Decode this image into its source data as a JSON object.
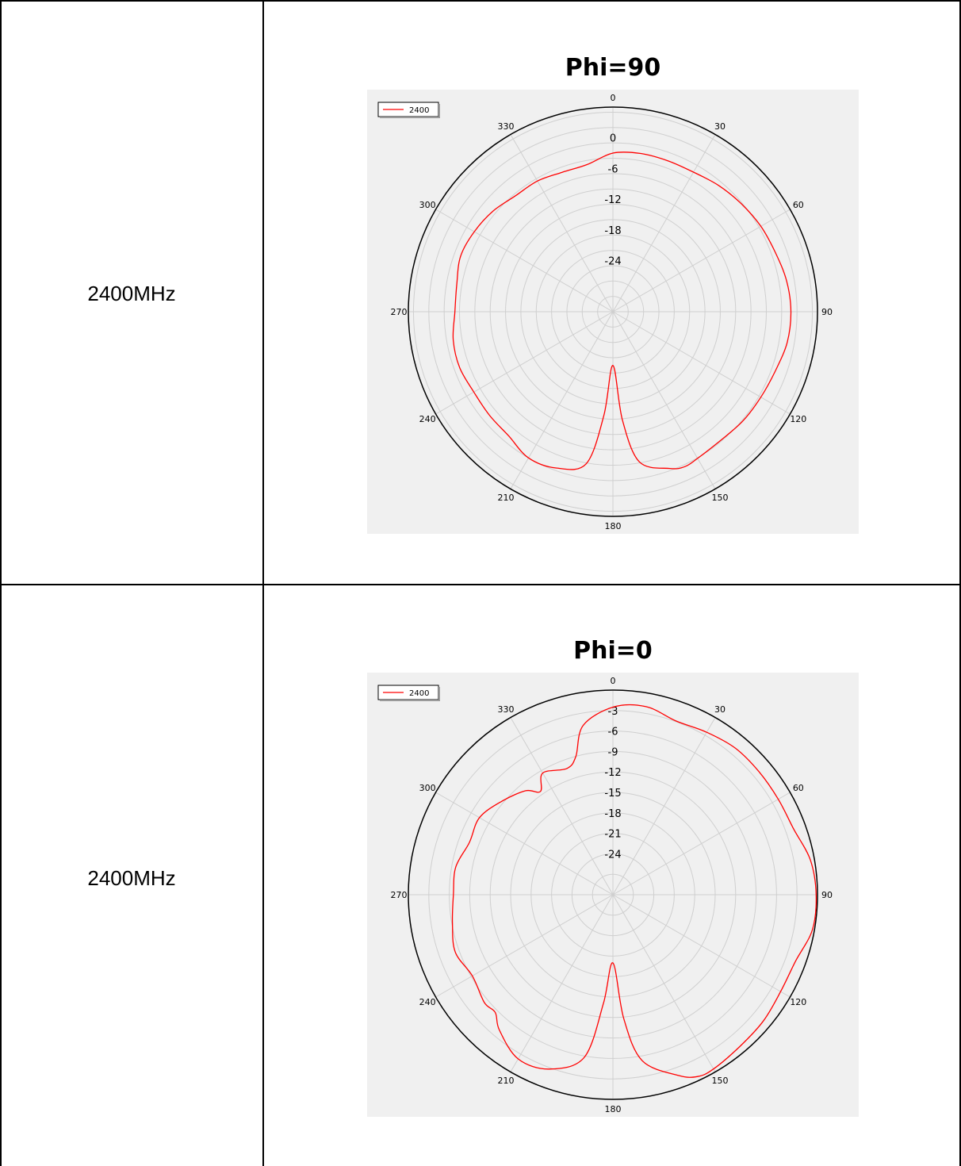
{
  "rows": [
    {
      "label": "2400MHz"
    },
    {
      "label": "2400MHz"
    }
  ],
  "colors": {
    "trace": "#ff0000",
    "plot_bg": "#f0f0f0",
    "grid": "#cfcfcf",
    "outer_ring": "#000000"
  },
  "chart_data": [
    {
      "type": "polar-line",
      "title": "Phi=90",
      "angle_unit": "degrees",
      "angle_zero": "top",
      "angle_direction": "clockwise",
      "angle_ticks": [
        0,
        30,
        60,
        90,
        120,
        150,
        180,
        210,
        240,
        270,
        300,
        330
      ],
      "radial_range": [
        -34,
        6
      ],
      "radial_tick_labels": [
        "0",
        "-6",
        "-12",
        "-18",
        "-24"
      ],
      "radial_ticks": [
        0,
        -6,
        -12,
        -18,
        -24
      ],
      "radial_grid_step": 3,
      "grid": true,
      "legend": {
        "position": "top-left",
        "entries": [
          "2400"
        ]
      },
      "series": [
        {
          "name": "2400",
          "angles": [
            0,
            10,
            20,
            30,
            40,
            50,
            60,
            70,
            80,
            90,
            100,
            110,
            120,
            130,
            140,
            150,
            155,
            160,
            170,
            175,
            180,
            185,
            190,
            200,
            210,
            220,
            230,
            240,
            250,
            260,
            270,
            280,
            290,
            300,
            310,
            320,
            330,
            340,
            350,
            360
          ],
          "values": [
            -3.0,
            -2.6,
            -2.6,
            -2.5,
            -1.8,
            -1.2,
            -0.6,
            -0.2,
            0.5,
            0.8,
            0.6,
            -0.2,
            -0.6,
            -0.8,
            -1.2,
            -0.9,
            -0.6,
            -1.4,
            -4.2,
            -12.8,
            -23.5,
            -13.6,
            -3.8,
            -1.5,
            -1.0,
            -2.3,
            -2.5,
            -2.6,
            -2.1,
            -2.3,
            -3.1,
            -3.0,
            -2.3,
            -2.7,
            -3.4,
            -4.4,
            -4.5,
            -5.0,
            -4.8,
            -3.0
          ]
        }
      ]
    },
    {
      "type": "polar-line",
      "title": "Phi=0",
      "angle_unit": "degrees",
      "angle_zero": "top",
      "angle_direction": "clockwise",
      "angle_ticks": [
        0,
        30,
        60,
        90,
        120,
        150,
        180,
        210,
        240,
        270,
        300,
        330
      ],
      "radial_range": [
        -30,
        0
      ],
      "radial_tick_labels": [
        "-3",
        "-6",
        "-9",
        "-12",
        "-15",
        "-18",
        "-21",
        "-24"
      ],
      "radial_ticks": [
        -3,
        -6,
        -9,
        -12,
        -15,
        -18,
        -21,
        -24
      ],
      "radial_grid_step": 3,
      "grid": true,
      "legend": {
        "position": "top-left",
        "entries": [
          "2400"
        ]
      },
      "series": [
        {
          "name": "2400",
          "angles": [
            0,
            10,
            20,
            30,
            40,
            50,
            60,
            70,
            80,
            90,
            100,
            110,
            120,
            130,
            140,
            150,
            155,
            160,
            170,
            175,
            180,
            185,
            190,
            200,
            210,
            220,
            225,
            230,
            240,
            250,
            260,
            270,
            280,
            290,
            300,
            310,
            320,
            325,
            330,
            340,
            345,
            350,
            360
          ],
          "values": [
            -2.5,
            -2.0,
            -2.9,
            -2.5,
            -2.0,
            -2.0,
            -2.0,
            -1.8,
            -0.6,
            -0.2,
            -0.3,
            -1.5,
            -1.6,
            -1.2,
            -1.0,
            -0.5,
            -0.6,
            -1.8,
            -5.3,
            -11.8,
            -20.0,
            -14.0,
            -5.8,
            -2.8,
            -2.2,
            -4.1,
            -5.6,
            -5.4,
            -6.2,
            -5.4,
            -6.1,
            -6.6,
            -6.6,
            -7.6,
            -7.4,
            -8.7,
            -10.1,
            -11.5,
            -9.4,
            -10.3,
            -9.0,
            -4.8,
            -2.5
          ]
        }
      ]
    }
  ]
}
